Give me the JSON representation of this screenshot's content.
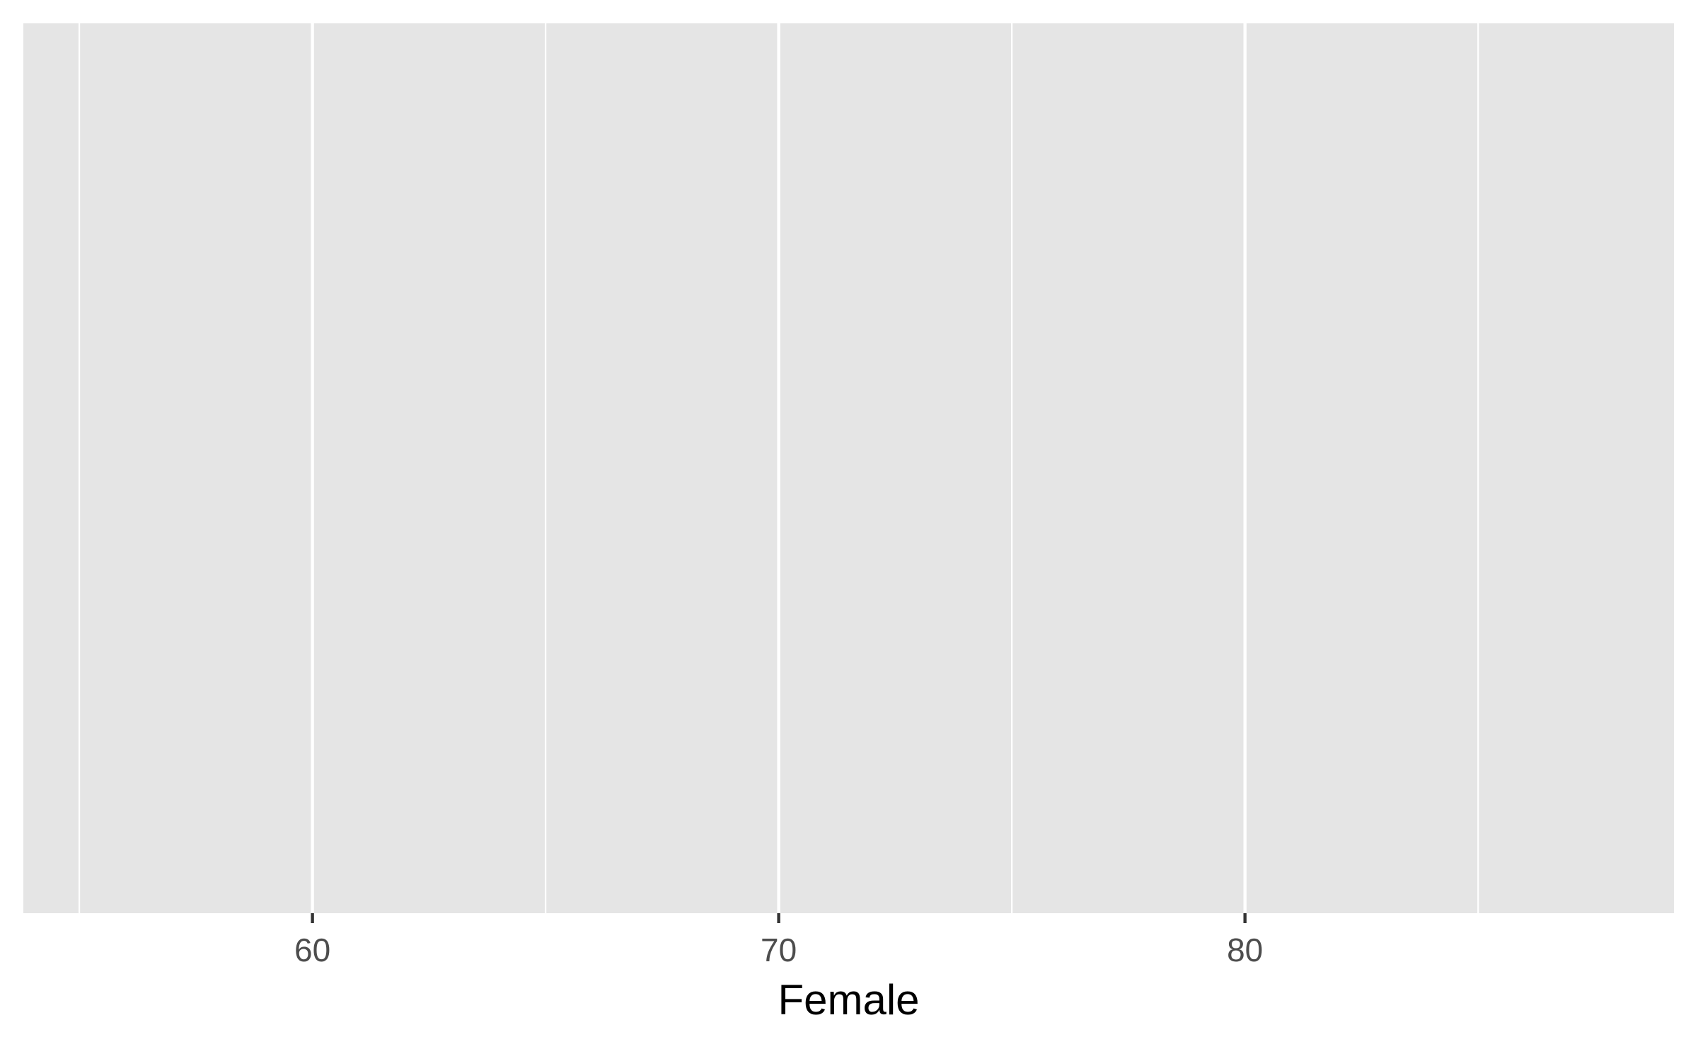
{
  "chart_data": {
    "type": "scatter",
    "title": "",
    "xlabel": "Female",
    "ylabel": "",
    "xlim": [
      53.8,
      89.2
    ],
    "x_major_ticks": [
      60,
      70,
      80
    ],
    "x_tick_labels": [
      "60",
      "70",
      "80"
    ],
    "x_minor_gridlines": [
      55,
      65,
      75,
      85
    ],
    "y_axis_shown": false,
    "grid": true,
    "series": [],
    "colors": {
      "panel_background": "#e5e5e5",
      "grid_major": "#ffffff",
      "grid_minor": "#ffffff",
      "tick_mark": "#333333",
      "tick_label": "#4d4d4d",
      "axis_title": "#000000",
      "page_background": "#ffffff"
    }
  }
}
